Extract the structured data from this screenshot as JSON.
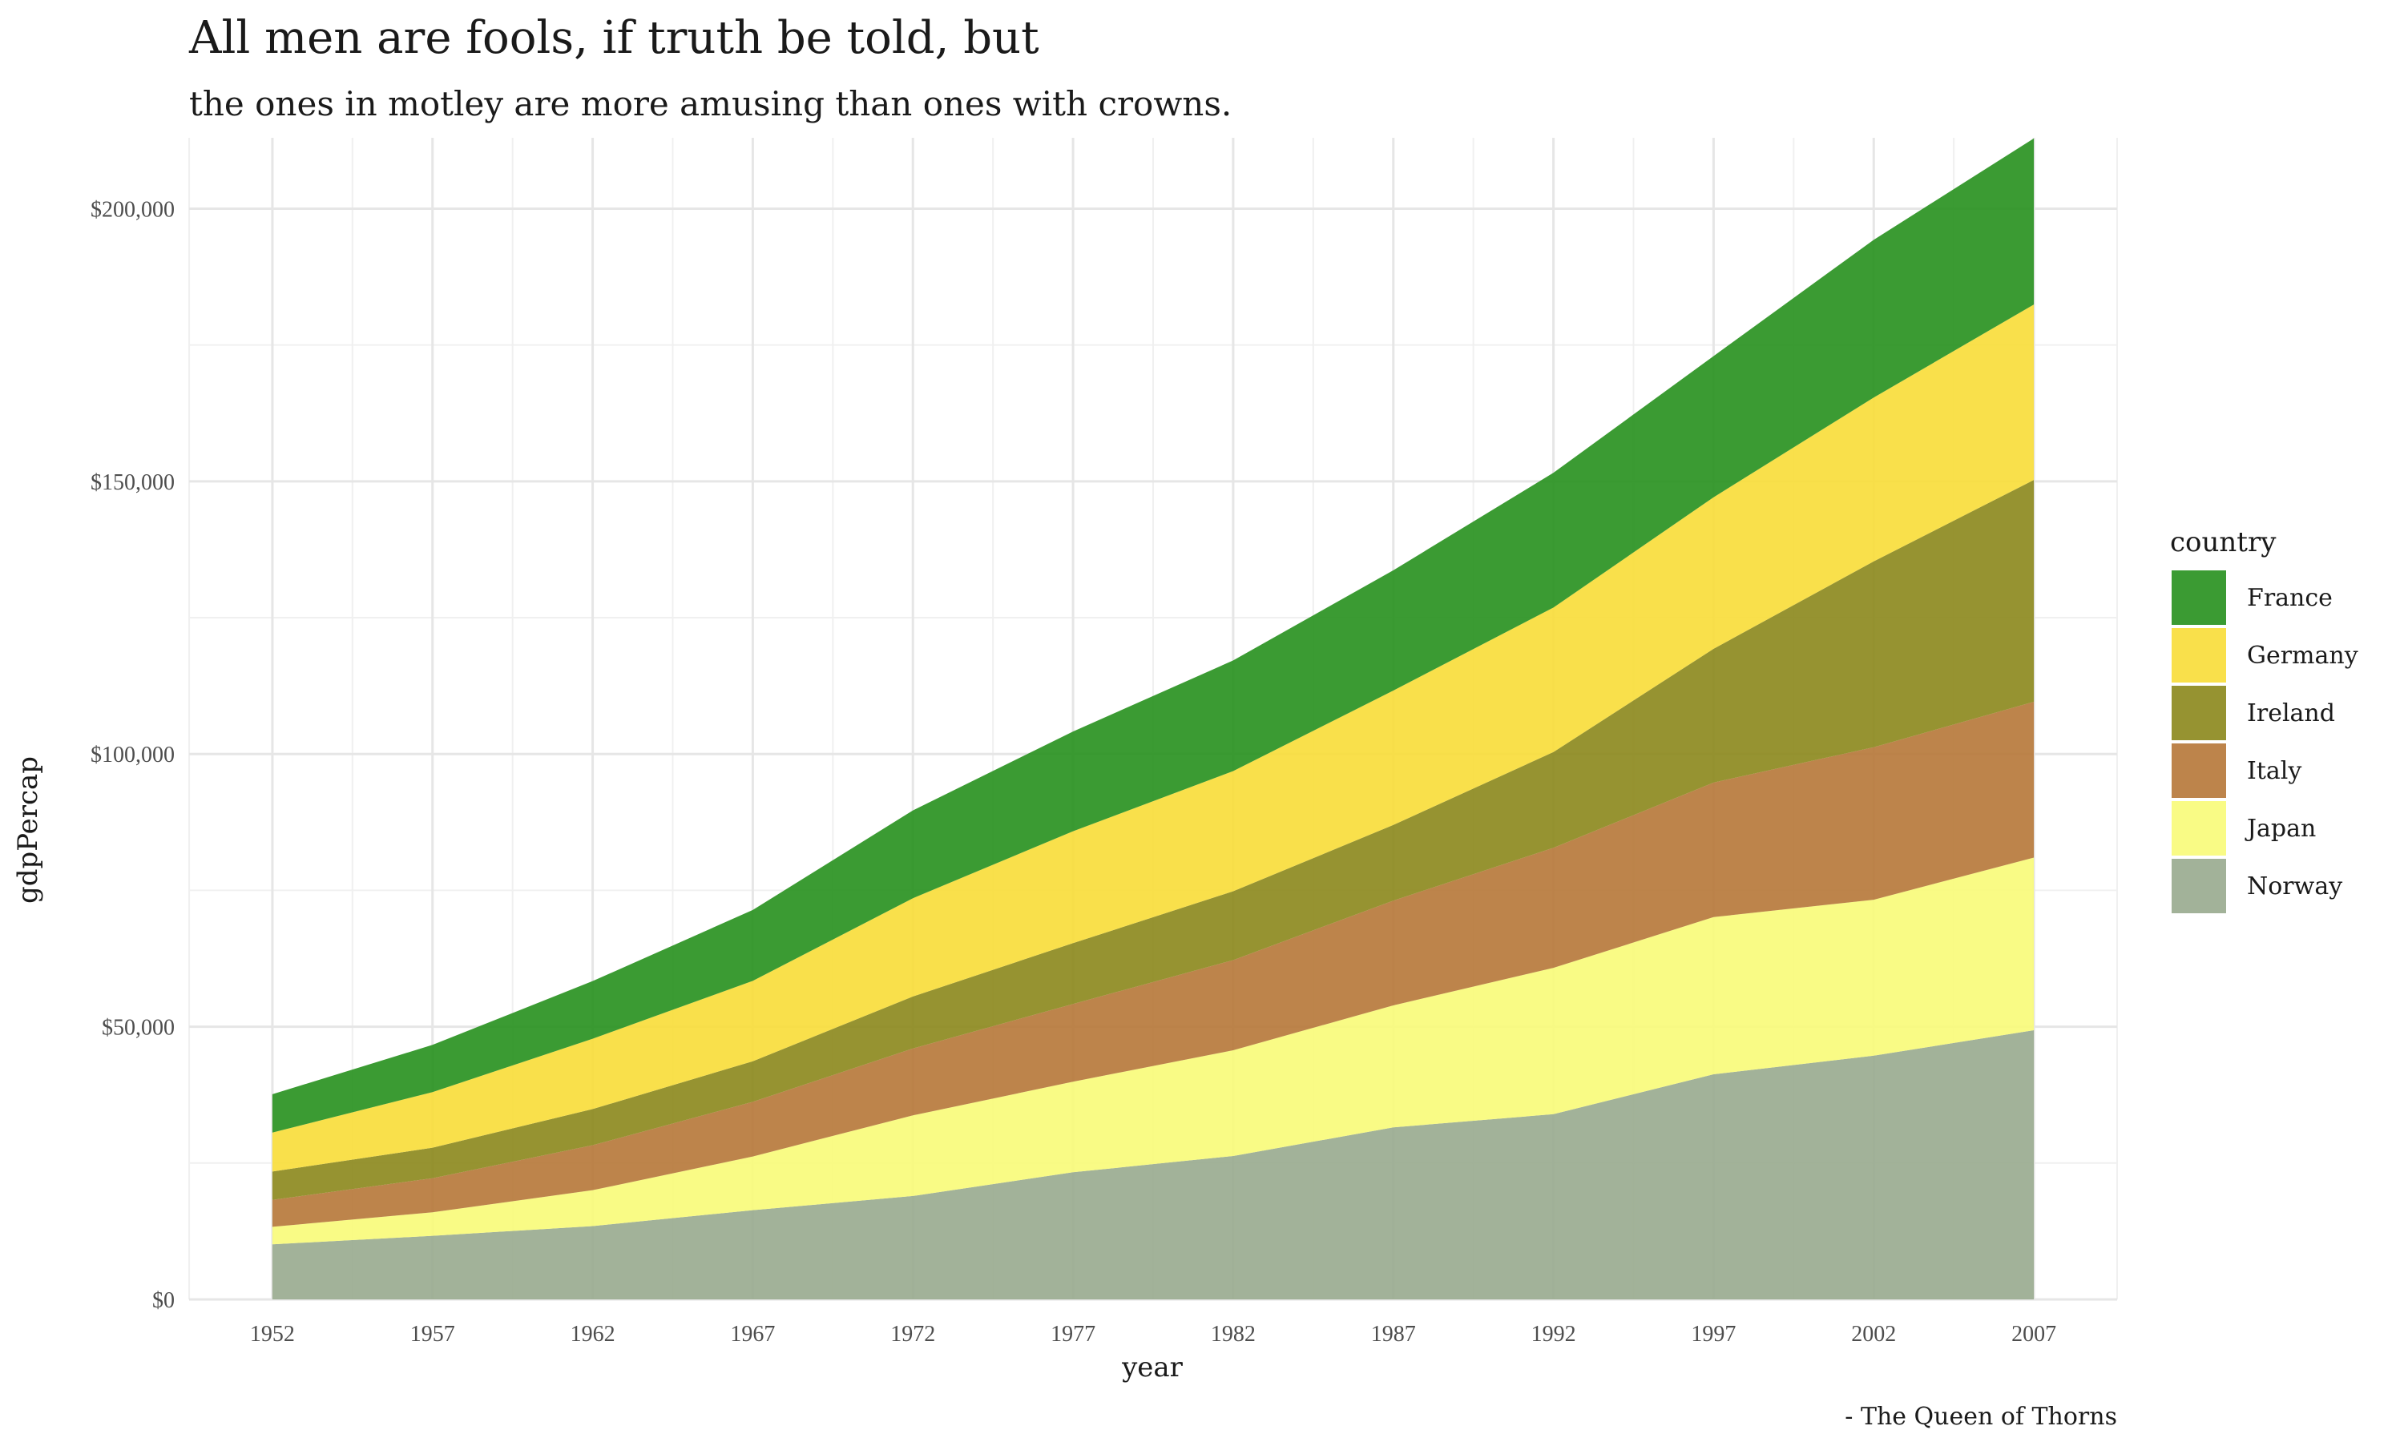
{
  "chart_data": {
    "type": "area",
    "stacked": true,
    "title": "All men are fools, if truth be told, but",
    "subtitle": "the ones in motley are more amusing than ones with crowns.",
    "xlabel": "year",
    "ylabel": "gdpPercap",
    "caption": "- The Queen of Thorns",
    "legend_title": "country",
    "legend_position": "right",
    "grid": true,
    "x": [
      1952,
      1957,
      1962,
      1967,
      1972,
      1977,
      1982,
      1987,
      1992,
      1997,
      2002,
      2007
    ],
    "x_ticks": [
      "1952",
      "1957",
      "1962",
      "1967",
      "1972",
      "1977",
      "1982",
      "1987",
      "1992",
      "1997",
      "2002",
      "2007"
    ],
    "y_ticks": [
      {
        "value": 0,
        "label": "$0"
      },
      {
        "value": 50000,
        "label": "$50,000"
      },
      {
        "value": 100000,
        "label": "$100,000"
      },
      {
        "value": 150000,
        "label": "$150,000"
      },
      {
        "value": 200000,
        "label": "$200,000"
      }
    ],
    "ylim": [
      0,
      213000
    ],
    "series": [
      {
        "name": "Norway",
        "color": "#9aab90",
        "values": [
          10095,
          11654,
          13450,
          16362,
          18965,
          23311,
          26299,
          31541,
          33966,
          41283,
          44684,
          49357
        ]
      },
      {
        "name": "Japan",
        "color": "#f8fb7b",
        "values": [
          3217,
          4318,
          6577,
          9848,
          14779,
          16610,
          19384,
          22376,
          26825,
          28817,
          28605,
          31656
        ]
      },
      {
        "name": "Italy",
        "color": "#b77a3c",
        "values": [
          4931,
          6249,
          8244,
          10022,
          12269,
          14256,
          16537,
          19208,
          22014,
          24675,
          27968,
          28570
        ]
      },
      {
        "name": "Ireland",
        "color": "#8d8a1f",
        "values": [
          5210,
          5599,
          6632,
          7436,
          9531,
          11151,
          12618,
          13873,
          17559,
          24522,
          34077,
          40676
        ]
      },
      {
        "name": "Germany",
        "color": "#f8dd3c",
        "values": [
          7144,
          10188,
          12902,
          14746,
          18016,
          20513,
          22032,
          24639,
          26505,
          27789,
          30036,
          32170
        ]
      },
      {
        "name": "France",
        "color": "#2a9222",
        "values": [
          7030,
          8663,
          10560,
          13000,
          16107,
          18293,
          20294,
          22066,
          24704,
          25890,
          28926,
          30470
        ]
      }
    ],
    "legend_order": [
      "France",
      "Germany",
      "Ireland",
      "Italy",
      "Japan",
      "Norway"
    ]
  }
}
